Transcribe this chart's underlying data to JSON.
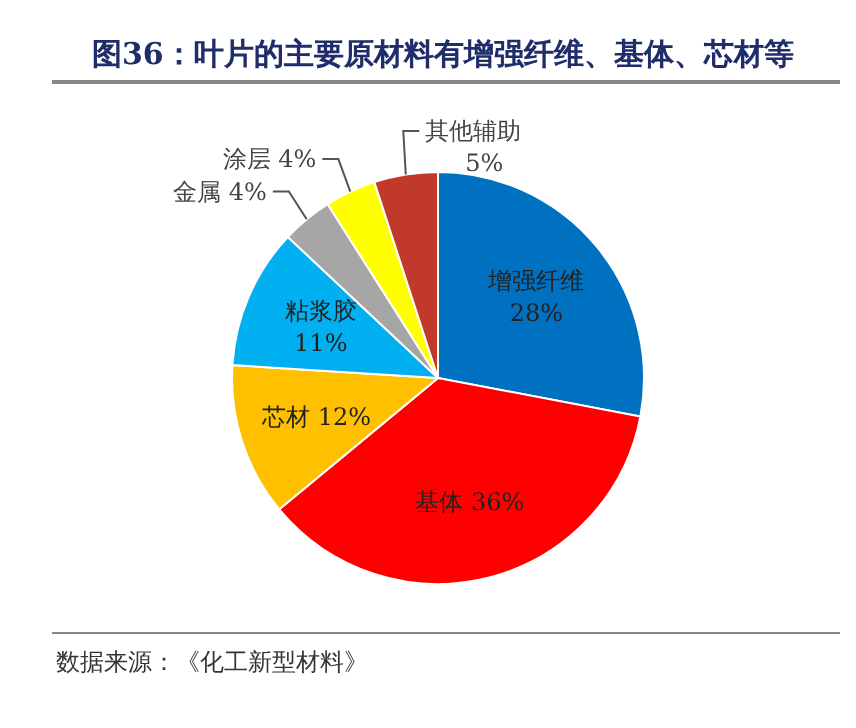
{
  "chart_data": {
    "type": "pie",
    "title": "图36：叶片的主要原材料有增强纤维、基体、芯材等",
    "categories": [
      "增强纤维",
      "基体",
      "芯材",
      "粘浆胶",
      "金属",
      "涂层",
      "其他辅助"
    ],
    "values": [
      28,
      36,
      12,
      11,
      4,
      4,
      5
    ],
    "value_labels": [
      "28%",
      "36%",
      "12%",
      "11%",
      "4%",
      "4%",
      "5%"
    ],
    "colors": [
      "#0070c0",
      "#ff0000",
      "#ffc000",
      "#00b0f0",
      "#a6a6a6",
      "#ffff00",
      "#c0392b"
    ],
    "annotations": [
      "数据来源：《化工新型材料》"
    ]
  }
}
